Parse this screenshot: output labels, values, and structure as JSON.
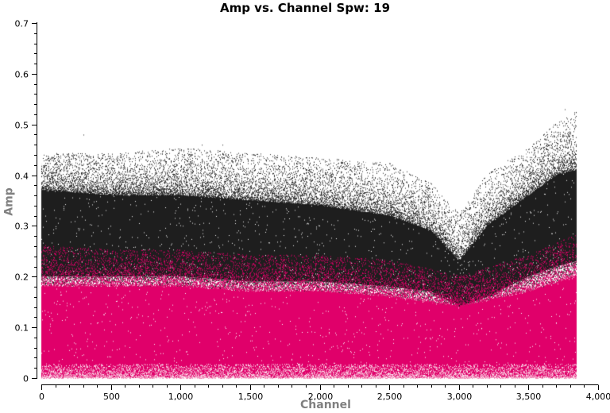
{
  "chart_data": {
    "type": "scatter",
    "title": "Amp vs. Channel Spw: 19",
    "xlabel": "Channel",
    "ylabel": "Amp",
    "xlim": [
      0,
      4000
    ],
    "ylim": [
      0,
      0.7
    ],
    "x_ticks": [
      0,
      500,
      1000,
      1500,
      2000,
      2500,
      3000,
      3500,
      4000
    ],
    "x_tick_labels": [
      "0",
      "500",
      "1,000",
      "1,500",
      "2,000",
      "2,500",
      "3,000",
      "3,500",
      "4,000"
    ],
    "y_ticks": [
      0,
      0.1,
      0.2,
      0.3,
      0.4,
      0.5,
      0.6,
      0.7
    ],
    "y_tick_labels": [
      "0",
      "0.1",
      "0.2",
      "0.3",
      "0.4",
      "0.5",
      "0.6",
      "0.7"
    ],
    "grid": false,
    "legend": null,
    "channel_range": [
      0,
      3839
    ],
    "series": [
      {
        "name": "black (upper amplitude population)",
        "color": "#1e1e1e",
        "envelope": {
          "channels": [
            0,
            500,
            1000,
            1500,
            2000,
            2500,
            2800,
            3000,
            3200,
            3500,
            3700,
            3839
          ],
          "amp_top_dense": [
            0.37,
            0.36,
            0.36,
            0.35,
            0.34,
            0.32,
            0.29,
            0.23,
            0.3,
            0.36,
            0.4,
            0.41
          ],
          "amp_top_sparse": [
            0.44,
            0.44,
            0.45,
            0.44,
            0.43,
            0.42,
            0.38,
            0.32,
            0.4,
            0.45,
            0.5,
            0.52
          ],
          "amp_bottom": [
            0.2,
            0.2,
            0.2,
            0.19,
            0.19,
            0.18,
            0.17,
            0.14,
            0.16,
            0.2,
            0.22,
            0.23
          ]
        },
        "max_amp": 0.53
      },
      {
        "name": "magenta (lower amplitude population)",
        "color": "#e0006a",
        "envelope": {
          "channels": [
            0,
            500,
            1000,
            1500,
            2000,
            2500,
            3000,
            3500,
            3839
          ],
          "amp_top_dense": [
            0.18,
            0.18,
            0.18,
            0.17,
            0.17,
            0.16,
            0.14,
            0.17,
            0.2
          ],
          "amp_top_sparse": [
            0.26,
            0.25,
            0.25,
            0.24,
            0.24,
            0.23,
            0.2,
            0.24,
            0.28
          ],
          "amp_bottom": [
            0.0,
            0.0,
            0.0,
            0.0,
            0.0,
            0.0,
            0.0,
            0.0,
            0.0
          ]
        }
      }
    ]
  }
}
